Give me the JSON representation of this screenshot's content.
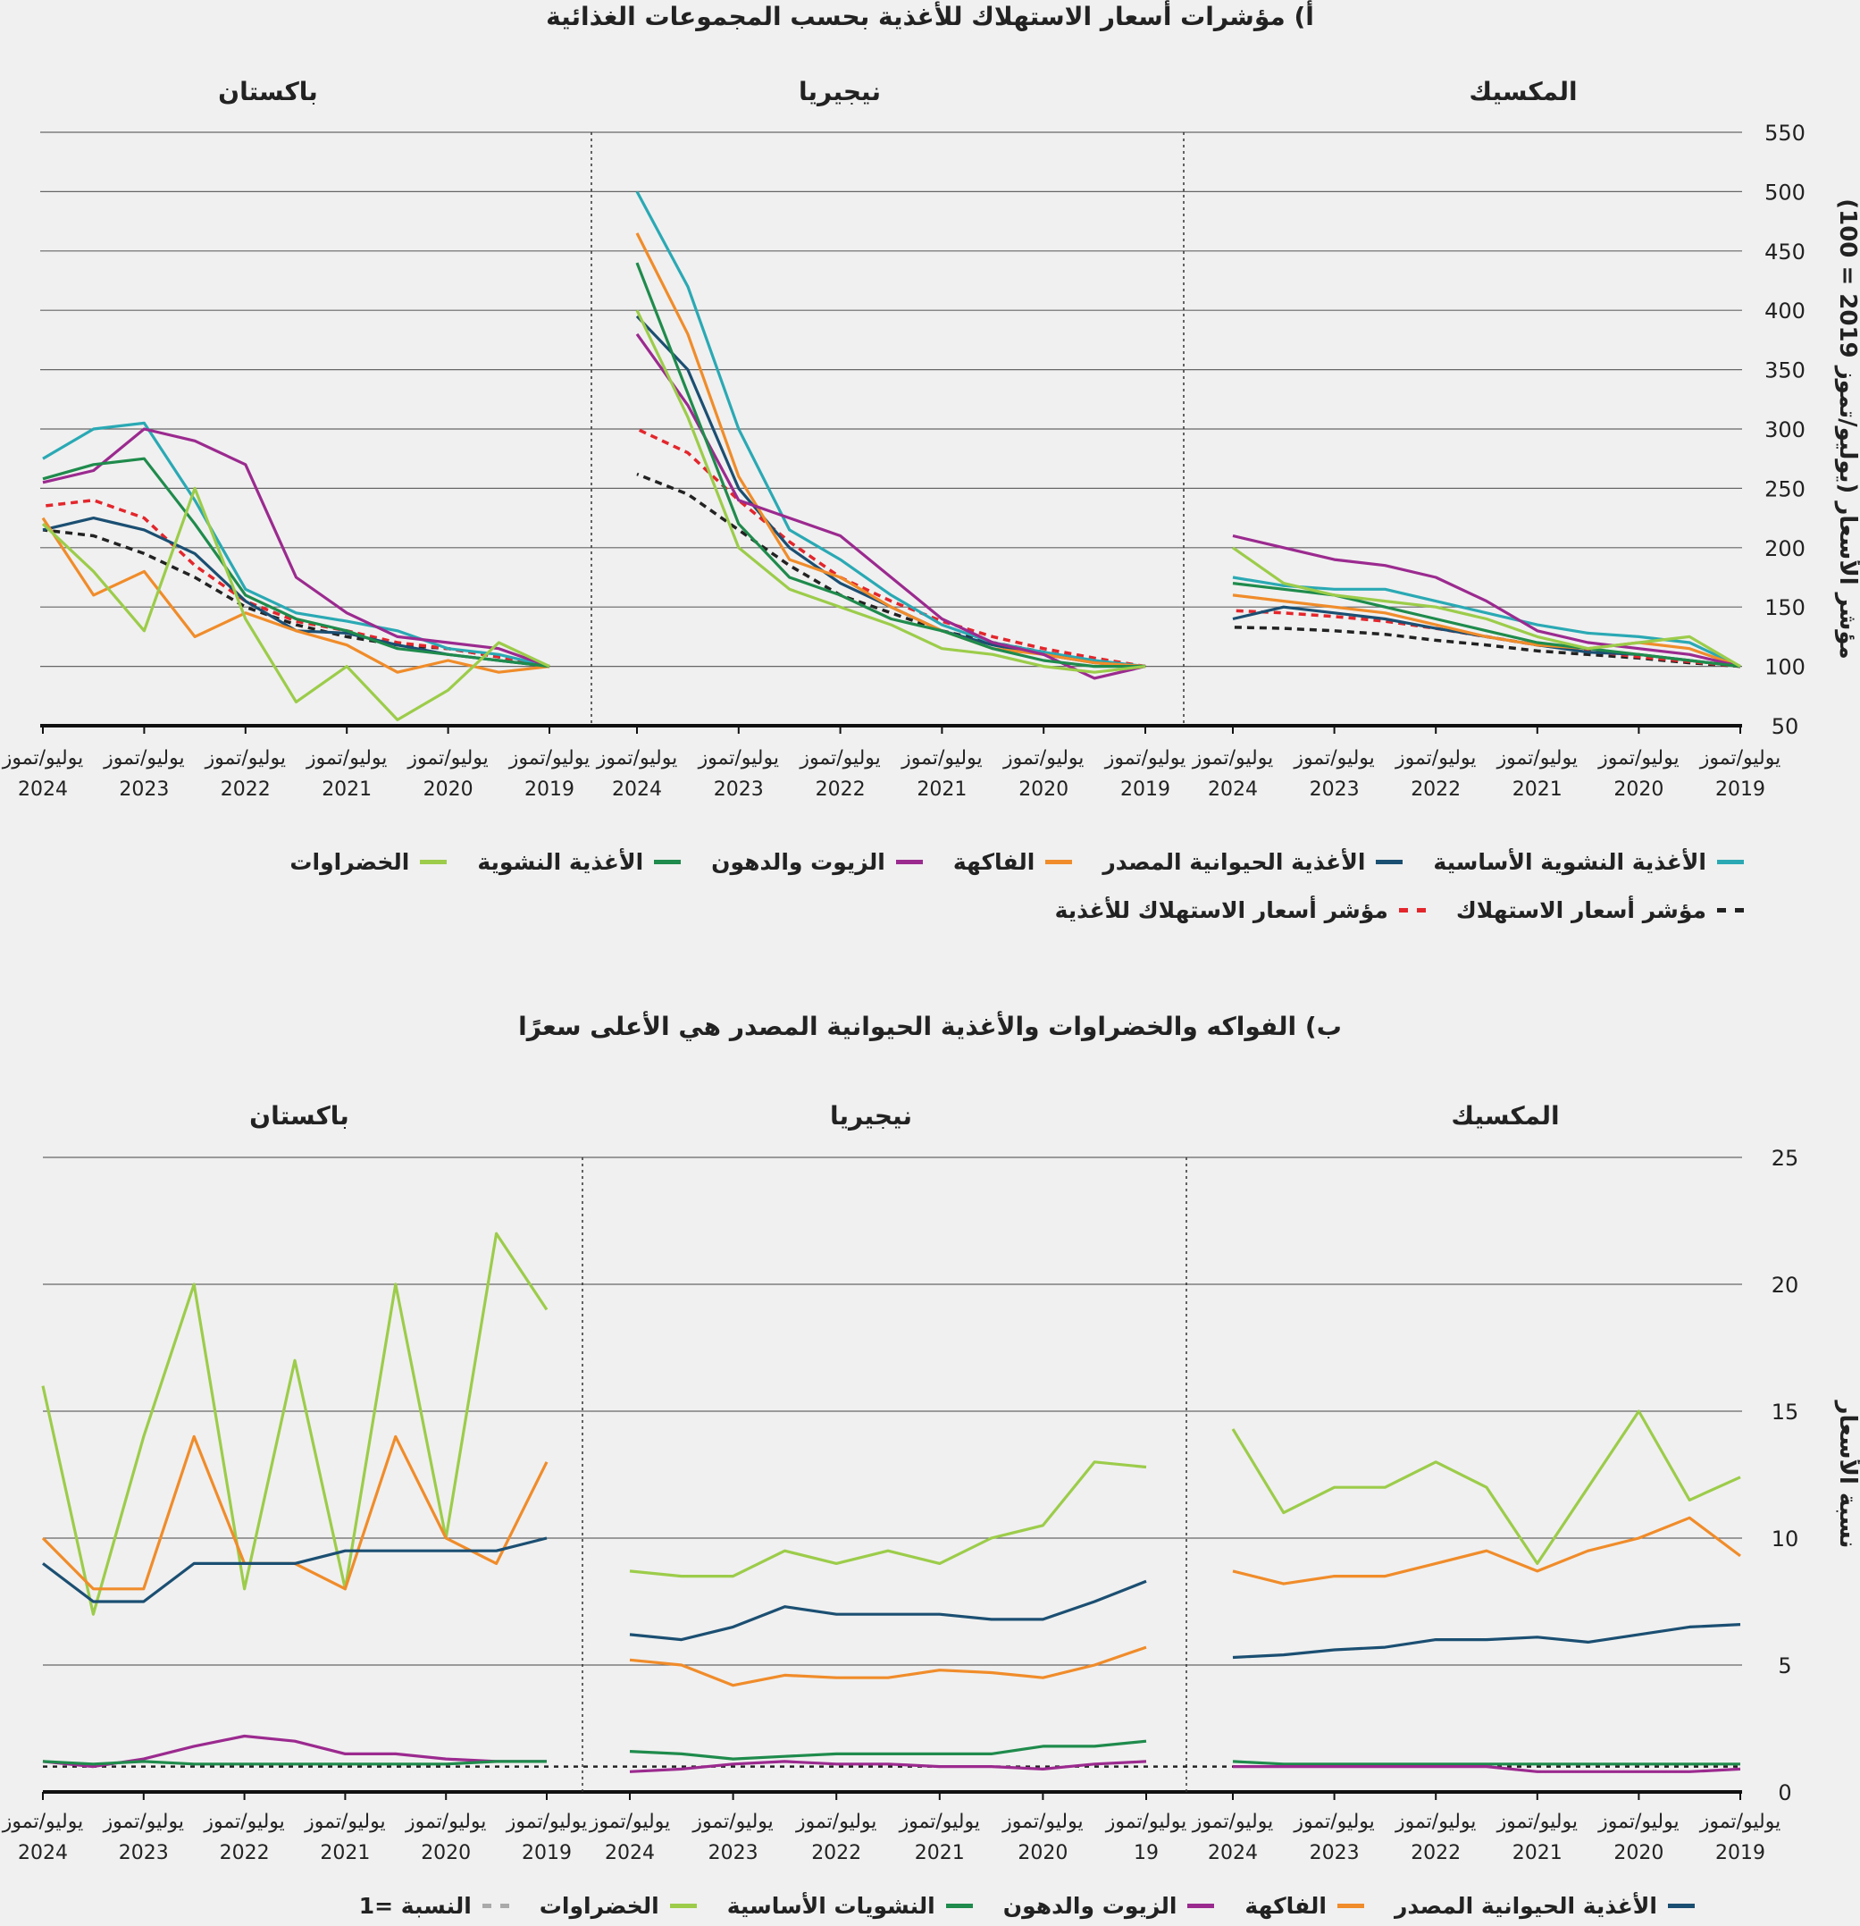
{
  "colors": {
    "teal": "#2aa9b4",
    "navy": "#1b4f72",
    "orange": "#f08c2a",
    "purple": "#9b2a8f",
    "green": "#1f8b4c",
    "lightgreen": "#9ccc4a",
    "red": "#e3262c",
    "black": "#222222",
    "grid": "#555555"
  },
  "legend_top": [
    {
      "label": "الأغذية النشوية الأساسية",
      "color": "#2aa9b4",
      "dash": false
    },
    {
      "label": "الأغذية الحيوانية المصدر",
      "color": "#1b4f72",
      "dash": false
    },
    {
      "label": "الفاكهة",
      "color": "#f08c2a",
      "dash": false
    },
    {
      "label": "الزيوت والدهون",
      "color": "#9b2a8f",
      "dash": false
    },
    {
      "label": "الأغذية النشوية",
      "color": "#1f8b4c",
      "dash": false
    },
    {
      "label": "الخضراوات",
      "color": "#9ccc4a",
      "dash": false
    }
  ],
  "legend_top_row2": [
    {
      "label": "مؤشر أسعار الاستهلاك",
      "color": "#222222",
      "dash": true
    },
    {
      "label": "مؤشر أسعار الاستهلاك للأغذية",
      "color": "#e3262c",
      "dash": true
    }
  ],
  "legend_bottom": [
    {
      "label": "الأغذية الحيوانية المصدر",
      "color": "#1b4f72",
      "dash": false
    },
    {
      "label": "الفاكهة",
      "color": "#f08c2a",
      "dash": false
    },
    {
      "label": "الزيوت والدهون",
      "color": "#9b2a8f",
      "dash": false
    },
    {
      "label": "النشويات الأساسية",
      "color": "#1f8b4c",
      "dash": false
    },
    {
      "label": "الخضراوات",
      "color": "#9ccc4a",
      "dash": false
    },
    {
      "label": "النسبة =1",
      "color": "#aaaaaa",
      "dash": true
    }
  ],
  "chart_data": [
    {
      "type": "line",
      "title": "أ) مؤشرات أسعار الاستهلاك للأغذية بحسب المجموعات الغذائية",
      "ylabel": "مؤشر الأسعار (يوليو/تموز 2019 = 100)",
      "ylim": [
        50,
        550
      ],
      "yticks": [
        "50",
        "100",
        "150",
        "200",
        "250",
        "300",
        "350",
        "400",
        "450",
        "500",
        "550"
      ],
      "x": [
        2019.5,
        2020,
        2020.5,
        2021,
        2021.5,
        2022,
        2022.5,
        2023,
        2023.5,
        2024,
        2024.5
      ],
      "xtick_month": "يوليو/تموز",
      "panels": [
        {
          "name": "باكستان",
          "xticks": [
            "2024",
            "2023",
            "2022",
            "2021",
            "2020",
            "2019"
          ],
          "series": [
            {
              "name": "مؤشر أسعار الاستهلاك",
              "color": "#222222",
              "dash": true,
              "values": [
                100,
                108,
                115,
                118,
                125,
                135,
                150,
                175,
                195,
                210,
                215
              ]
            },
            {
              "name": "مؤشر أسعار الاستهلاك للأغذية",
              "color": "#e3262c",
              "dash": true,
              "values": [
                100,
                108,
                115,
                120,
                130,
                138,
                155,
                185,
                225,
                240,
                235
              ]
            },
            {
              "name": "الأغذية النشوية الأساسية",
              "color": "#2aa9b4",
              "values": [
                100,
                110,
                115,
                130,
                138,
                145,
                165,
                240,
                305,
                300,
                275
              ]
            },
            {
              "name": "الأغذية الحيوانية المصدر",
              "color": "#1b4f72",
              "values": [
                100,
                105,
                110,
                118,
                128,
                130,
                155,
                195,
                215,
                225,
                215
              ]
            },
            {
              "name": "الفاكهة",
              "color": "#f08c2a",
              "values": [
                100,
                95,
                105,
                95,
                118,
                130,
                145,
                125,
                180,
                160,
                225
              ]
            },
            {
              "name": "الزيوت والدهون",
              "color": "#9b2a8f",
              "values": [
                100,
                115,
                120,
                125,
                145,
                175,
                270,
                290,
                300,
                265,
                255
              ]
            },
            {
              "name": "الأغذية النشوية",
              "color": "#1f8b4c",
              "values": [
                100,
                105,
                110,
                115,
                130,
                140,
                160,
                220,
                275,
                270,
                258
              ]
            },
            {
              "name": "الخضراوات",
              "color": "#9ccc4a",
              "values": [
                100,
                120,
                80,
                55,
                100,
                70,
                140,
                250,
                130,
                180,
                220
              ]
            }
          ]
        },
        {
          "name": "نيجيريا",
          "xticks": [
            "2024",
            "2023",
            "2022",
            "2021",
            "2020",
            "2019"
          ],
          "series": [
            {
              "name": "مؤشر أسعار الاستهلاك",
              "color": "#222222",
              "dash": true,
              "values": [
                100,
                105,
                112,
                120,
                130,
                145,
                160,
                185,
                215,
                245,
                262
              ]
            },
            {
              "name": "مؤشر أسعار الاستهلاك للأغذية",
              "color": "#e3262c",
              "dash": true,
              "values": [
                100,
                107,
                115,
                125,
                138,
                155,
                175,
                205,
                240,
                280,
                300
              ]
            },
            {
              "name": "الأغذية النشوية الأساسية",
              "color": "#2aa9b4",
              "values": [
                100,
                105,
                112,
                120,
                135,
                160,
                190,
                215,
                300,
                420,
                500
              ]
            },
            {
              "name": "الأغذية الحيوانية المصدر",
              "color": "#1b4f72",
              "values": [
                100,
                103,
                110,
                118,
                130,
                150,
                170,
                200,
                250,
                350,
                395
              ]
            },
            {
              "name": "الفاكهة",
              "color": "#f08c2a",
              "values": [
                100,
                103,
                110,
                115,
                130,
                150,
                175,
                190,
                260,
                380,
                465
              ]
            },
            {
              "name": "الزيوت والدهون",
              "color": "#9b2a8f",
              "values": [
                100,
                90,
                110,
                120,
                140,
                175,
                210,
                225,
                240,
                320,
                380
              ]
            },
            {
              "name": "الأغذية النشوية",
              "color": "#1f8b4c",
              "values": [
                100,
                100,
                105,
                115,
                130,
                140,
                160,
                175,
                220,
                330,
                440
              ]
            },
            {
              "name": "الخضراوات",
              "color": "#9ccc4a",
              "values": [
                100,
                95,
                100,
                110,
                115,
                135,
                150,
                165,
                200,
                310,
                400
              ]
            }
          ]
        },
        {
          "name": "المكسيك",
          "xticks": [
            "2024",
            "2023",
            "2022",
            "2021",
            "2020",
            "2019"
          ],
          "series": [
            {
              "name": "مؤشر أسعار الاستهلاك",
              "color": "#222222",
              "dash": true,
              "values": [
                100,
                103,
                107,
                110,
                113,
                118,
                122,
                127,
                130,
                132,
                133
              ]
            },
            {
              "name": "مؤشر أسعار الاستهلاك للأغذية",
              "color": "#e3262c",
              "dash": true,
              "values": [
                100,
                104,
                108,
                113,
                118,
                125,
                132,
                138,
                142,
                145,
                147
              ]
            },
            {
              "name": "الأغذية النشوية الأساسية",
              "color": "#2aa9b4",
              "values": [
                100,
                120,
                125,
                128,
                135,
                145,
                155,
                165,
                165,
                168,
                175
              ]
            },
            {
              "name": "الأغذية الحيوانية المصدر",
              "color": "#1b4f72",
              "values": [
                100,
                105,
                110,
                112,
                118,
                125,
                132,
                140,
                145,
                150,
                140
              ]
            },
            {
              "name": "الفاكهة",
              "color": "#f08c2a",
              "values": [
                100,
                115,
                120,
                115,
                118,
                125,
                135,
                145,
                150,
                155,
                160
              ]
            },
            {
              "name": "الزيوت والدهون",
              "color": "#9b2a8f",
              "values": [
                100,
                110,
                115,
                120,
                130,
                155,
                175,
                185,
                190,
                200,
                210
              ]
            },
            {
              "name": "الأغذية النشوية",
              "color": "#1f8b4c",
              "values": [
                100,
                105,
                110,
                115,
                120,
                130,
                140,
                150,
                160,
                165,
                170
              ]
            },
            {
              "name": "الخضراوات",
              "color": "#9ccc4a",
              "values": [
                100,
                125,
                120,
                115,
                125,
                140,
                150,
                155,
                160,
                170,
                200
              ]
            }
          ]
        }
      ]
    },
    {
      "type": "line",
      "title": "ب) الفواكه والخضراوات والأغذية الحيوانية المصدر هي الأعلى سعرًا",
      "ylabel": "نسبة الأسعار",
      "ylim": [
        0,
        25
      ],
      "yticks": [
        "0",
        "5",
        "10",
        "15",
        "20",
        "25"
      ],
      "reference_line": 1,
      "x": [
        2019.5,
        2020,
        2020.5,
        2021,
        2021.5,
        2022,
        2022.5,
        2023,
        2023.5,
        2024,
        2024.5
      ],
      "xtick_month": "يوليو/تموز",
      "panels": [
        {
          "name": "باكستان",
          "xticks": [
            "2024",
            "2023",
            "2022",
            "2021",
            "2020",
            "2019"
          ],
          "series": [
            {
              "name": "الخضراوات",
              "color": "#9ccc4a",
              "values": [
                19,
                22,
                10,
                20,
                8,
                17,
                8,
                20,
                14,
                7,
                16
              ]
            },
            {
              "name": "الفاكهة",
              "color": "#f08c2a",
              "values": [
                13,
                9,
                10,
                14,
                8,
                9,
                9,
                14,
                8,
                8,
                10
              ]
            },
            {
              "name": "الأغذية الحيوانية المصدر",
              "color": "#1b4f72",
              "values": [
                10,
                9.5,
                9.5,
                9.5,
                9.5,
                9,
                9,
                9,
                7.5,
                7.5,
                9
              ]
            },
            {
              "name": "الزيوت والدهون",
              "color": "#9b2a8f",
              "values": [
                1.2,
                1.2,
                1.3,
                1.5,
                1.5,
                2,
                2.2,
                1.8,
                1.3,
                1.0,
                1.2
              ]
            },
            {
              "name": "النشويات الأساسية",
              "color": "#1f8b4c",
              "values": [
                1.2,
                1.2,
                1.1,
                1.1,
                1.1,
                1.1,
                1.1,
                1.1,
                1.2,
                1.1,
                1.2
              ]
            }
          ]
        },
        {
          "name": "نيجيريا",
          "xticks": [
            "2024",
            "2023",
            "2022",
            "2021",
            "2020",
            "19"
          ],
          "series": [
            {
              "name": "الخضراوات",
              "color": "#9ccc4a",
              "values": [
                12.8,
                13,
                10.5,
                10,
                9,
                9.5,
                9,
                9.5,
                8.5,
                8.5,
                8.7
              ]
            },
            {
              "name": "الأغذية الحيوانية المصدر",
              "color": "#1b4f72",
              "values": [
                8.3,
                7.5,
                6.8,
                6.8,
                7,
                7,
                7,
                7.3,
                6.5,
                6.0,
                6.2
              ]
            },
            {
              "name": "الفاكهة",
              "color": "#f08c2a",
              "values": [
                5.7,
                5,
                4.5,
                4.7,
                4.8,
                4.5,
                4.5,
                4.6,
                4.2,
                5,
                5.2
              ]
            },
            {
              "name": "النشويات الأساسية",
              "color": "#1f8b4c",
              "values": [
                2,
                1.8,
                1.8,
                1.5,
                1.5,
                1.5,
                1.5,
                1.4,
                1.3,
                1.5,
                1.6
              ]
            },
            {
              "name": "الزيوت والدهون",
              "color": "#9b2a8f",
              "values": [
                1.2,
                1.1,
                0.9,
                1,
                1,
                1.1,
                1.1,
                1.2,
                1.1,
                0.9,
                0.8
              ]
            }
          ]
        },
        {
          "name": "المكسيك",
          "xticks": [
            "2024",
            "2023",
            "2022",
            "2021",
            "2020",
            "2019"
          ],
          "series": [
            {
              "name": "الخضراوات",
              "color": "#9ccc4a",
              "values": [
                12.4,
                11.5,
                15,
                12,
                9,
                12,
                13,
                12,
                12,
                11,
                14.3
              ]
            },
            {
              "name": "الفاكهة",
              "color": "#f08c2a",
              "values": [
                9.3,
                10.8,
                10,
                9.5,
                8.7,
                9.5,
                9,
                8.5,
                8.5,
                8.2,
                8.7
              ]
            },
            {
              "name": "الأغذية الحيوانية المصدر",
              "color": "#1b4f72",
              "values": [
                6.6,
                6.5,
                6.2,
                5.9,
                6.1,
                6.0,
                6.0,
                5.7,
                5.6,
                5.4,
                5.3
              ]
            },
            {
              "name": "النشويات الأساسية",
              "color": "#1f8b4c",
              "values": [
                1.1,
                1.1,
                1.1,
                1.1,
                1.1,
                1.1,
                1.1,
                1.1,
                1.1,
                1.1,
                1.2
              ]
            },
            {
              "name": "الزيوت والدهون",
              "color": "#9b2a8f",
              "values": [
                0.9,
                0.8,
                0.8,
                0.8,
                0.8,
                1.0,
                1.0,
                1.0,
                1.0,
                1.0,
                1.0
              ]
            }
          ]
        }
      ]
    }
  ]
}
